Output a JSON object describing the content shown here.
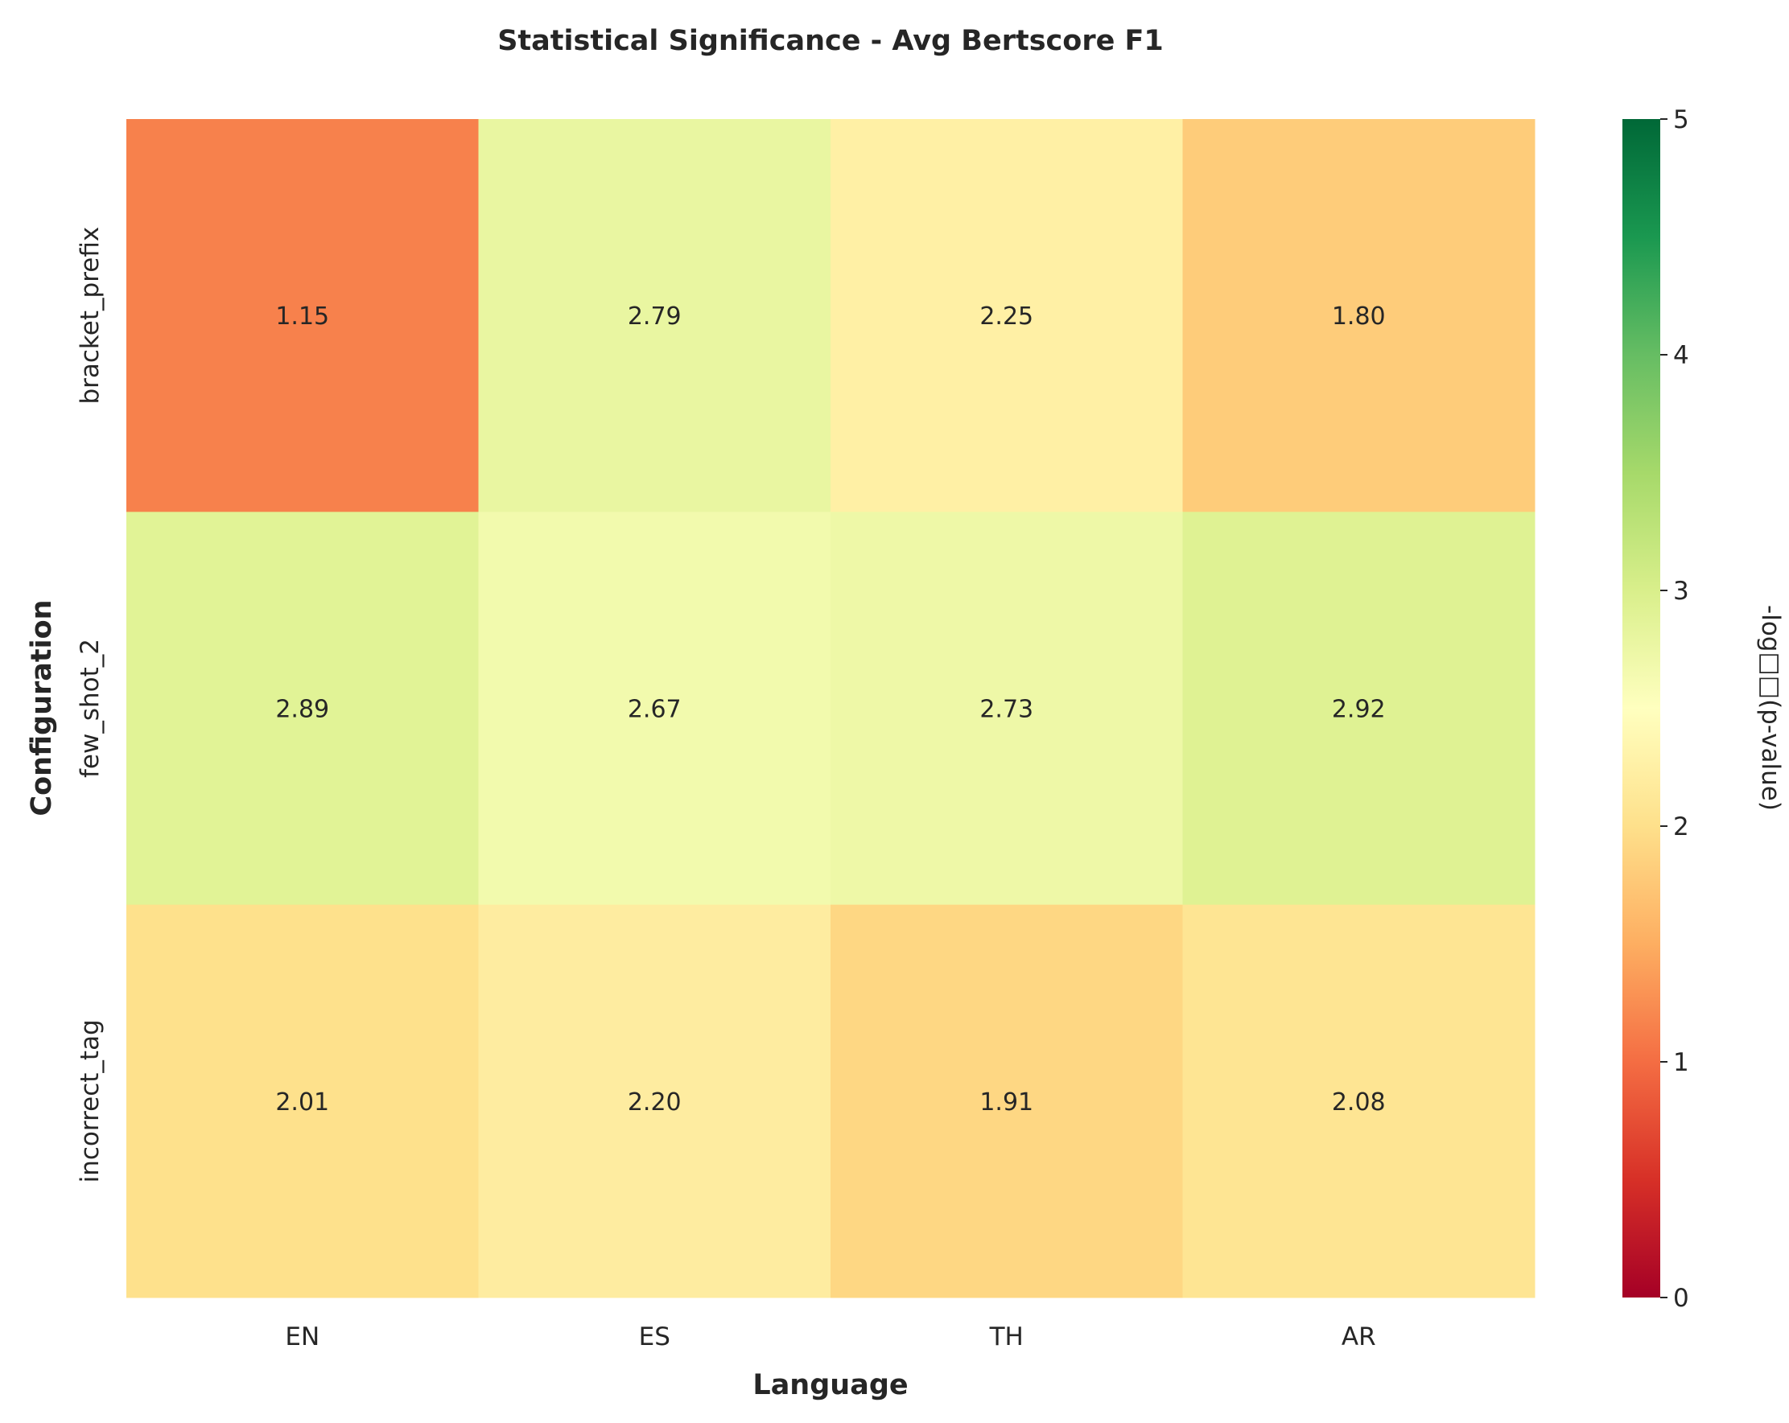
{
  "chart_data": {
    "type": "heatmap",
    "title": "Statistical Significance - Avg Bertscore F1",
    "xlabel": "Language",
    "ylabel": "Configuration",
    "x_categories": [
      "EN",
      "ES",
      "TH",
      "AR"
    ],
    "y_categories": [
      "bracket_prefix",
      "few_shot_2",
      "incorrect_tag"
    ],
    "values": [
      [
        1.15,
        2.79,
        2.25,
        1.8
      ],
      [
        2.89,
        2.67,
        2.73,
        2.92
      ],
      [
        2.01,
        2.2,
        1.91,
        2.08
      ]
    ],
    "value_labels": [
      [
        "1.15",
        "2.79",
        "2.25",
        "1.80"
      ],
      [
        "2.89",
        "2.67",
        "2.73",
        "2.92"
      ],
      [
        "2.01",
        "2.20",
        "1.91",
        "2.08"
      ]
    ],
    "colorbar": {
      "label": "-log□□(p-value)",
      "range": [
        0,
        5
      ],
      "ticks": [
        "0",
        "1",
        "2",
        "3",
        "4",
        "5"
      ],
      "colormap": "RdYlGn"
    },
    "grid": false
  }
}
